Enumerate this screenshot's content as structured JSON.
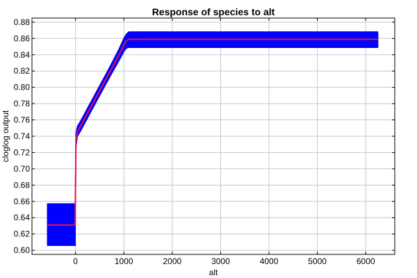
{
  "chart_data": {
    "type": "area",
    "title": "Response of species to alt",
    "xlabel": "alt",
    "ylabel": "cloglog output",
    "xlim": [
      -900,
      6600
    ],
    "ylim": [
      0.595,
      0.885
    ],
    "x_ticks": [
      0,
      1000,
      2000,
      3000,
      4000,
      5000,
      6000
    ],
    "x_tick_labels": [
      "0",
      "1000",
      "2000",
      "3000",
      "4000",
      "5000",
      "6000"
    ],
    "y_ticks": [
      0.6,
      0.62,
      0.64,
      0.66,
      0.68,
      0.7,
      0.72,
      0.74,
      0.76,
      0.78,
      0.8,
      0.82,
      0.84,
      0.86,
      0.88
    ],
    "y_tick_labels": [
      "0.60",
      "0.62",
      "0.64",
      "0.66",
      "0.68",
      "0.70",
      "0.72",
      "0.74",
      "0.76",
      "0.78",
      "0.80",
      "0.82",
      "0.84",
      "0.86",
      "0.88"
    ],
    "grid": true,
    "band_color": "#0000ff",
    "line_color": "#e8124a",
    "series": [
      {
        "x": [
          -580,
          -5,
          -5,
          10,
          40,
          100,
          300,
          500,
          700,
          900,
          1000,
          1050,
          1100,
          6250
        ],
        "y": [
          0.631,
          0.631,
          0.645,
          0.735,
          0.745,
          0.752,
          0.774,
          0.796,
          0.818,
          0.84,
          0.852,
          0.857,
          0.859,
          0.859
        ],
        "lower": [
          0.606,
          0.606,
          0.64,
          0.728,
          0.74,
          0.746,
          0.768,
          0.79,
          0.812,
          0.833,
          0.844,
          0.848,
          0.849,
          0.849
        ],
        "upper": [
          0.657,
          0.657,
          0.657,
          0.743,
          0.752,
          0.758,
          0.78,
          0.802,
          0.824,
          0.847,
          0.86,
          0.865,
          0.868,
          0.868
        ]
      }
    ]
  }
}
